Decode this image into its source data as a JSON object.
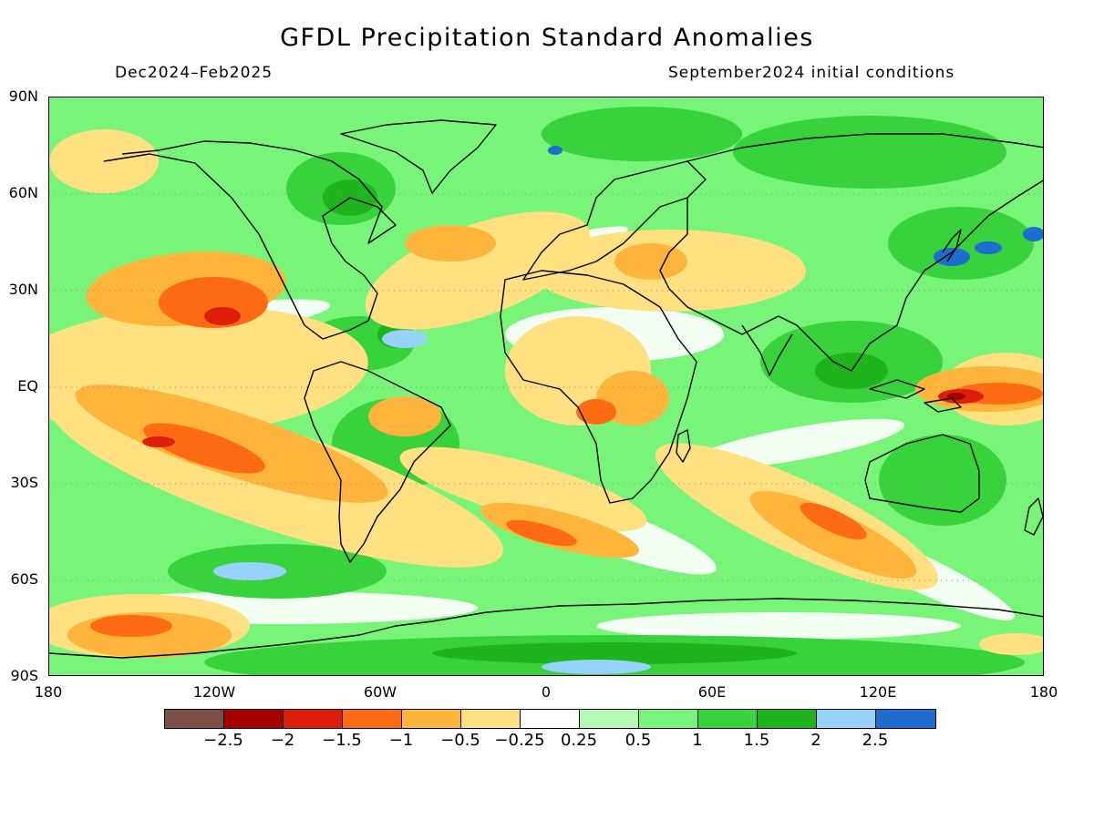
{
  "header": {
    "title": "GFDL Precipitation Standard Anomalies",
    "period": "Dec2024–Feb2025",
    "initial_conditions": "September2024 initial conditions"
  },
  "axes": {
    "lat_labels": [
      "90N",
      "60N",
      "30N",
      "EQ",
      "30S",
      "60S",
      "90S"
    ],
    "lon_labels": [
      "180",
      "120W",
      "60W",
      "0",
      "60E",
      "120E",
      "180"
    ]
  },
  "colorbar": {
    "colors": [
      "#7b4f45",
      "#a50000",
      "#dc1e0a",
      "#ff6a14",
      "#ffb43c",
      "#ffe182",
      "#ffffff",
      "#b4fab4",
      "#78f578",
      "#37d23c",
      "#1eb41e",
      "#96d2fa",
      "#1e6ed2"
    ],
    "labels": [
      "−2.5",
      "−2",
      "−1.5",
      "−1",
      "−0.5",
      "−0.25",
      "0.25",
      "0.5",
      "1",
      "1.5",
      "2",
      "2.5"
    ]
  }
}
